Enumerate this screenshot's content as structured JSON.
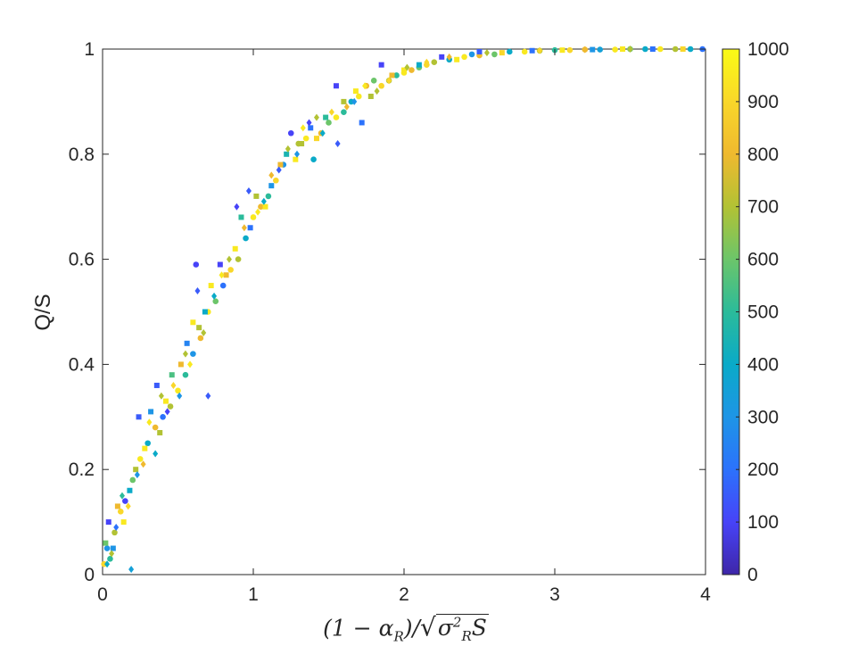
{
  "chart_data": {
    "type": "scatter",
    "ylabel": "Q/S",
    "xlabel_parts": {
      "open": "(1 − ",
      "alpha": "α",
      "alpha_sub": "R",
      "close": ")/",
      "sqrt": "√",
      "sigma": "σ",
      "sigma_sup": "2",
      "sigma_sub": "R",
      "s": "S"
    },
    "xlim": [
      0,
      4
    ],
    "ylim": [
      0,
      1
    ],
    "x_ticks": [
      "0",
      "1",
      "2",
      "3",
      "4"
    ],
    "y_ticks": [
      "0",
      "0.2",
      "0.4",
      "0.6",
      "0.8",
      "1"
    ],
    "grid": false,
    "colorbar": {
      "range": [
        0,
        1000
      ],
      "ticks": [
        "0",
        "100",
        "200",
        "300",
        "400",
        "500",
        "600",
        "700",
        "800",
        "900",
        "1000"
      ],
      "colormap": "parula",
      "stops": [
        "#3e26a8",
        "#4743f8",
        "#2c72fc",
        "#1e95e6",
        "#0aaac8",
        "#2bbb9a",
        "#6cc56a",
        "#b2c234",
        "#efb92f",
        "#f9d72a",
        "#f9fb15"
      ]
    },
    "markers": [
      "circle",
      "square",
      "diamond"
    ],
    "series": [
      {
        "marker": "circle",
        "points": [
          [
            0.01,
            0.02,
            900
          ],
          [
            0.03,
            0.05,
            300
          ],
          [
            0.05,
            0.03,
            500
          ],
          [
            0.08,
            0.08,
            700
          ],
          [
            0.12,
            0.12,
            900
          ],
          [
            0.15,
            0.14,
            100
          ],
          [
            0.2,
            0.18,
            600
          ],
          [
            0.25,
            0.22,
            950
          ],
          [
            0.3,
            0.25,
            400
          ],
          [
            0.35,
            0.28,
            800
          ],
          [
            0.4,
            0.3,
            200
          ],
          [
            0.45,
            0.32,
            700
          ],
          [
            0.5,
            0.35,
            950
          ],
          [
            0.55,
            0.38,
            500
          ],
          [
            0.6,
            0.42,
            300
          ],
          [
            0.62,
            0.59,
            100
          ],
          [
            0.65,
            0.45,
            800
          ],
          [
            0.7,
            0.5,
            950
          ],
          [
            0.75,
            0.52,
            600
          ],
          [
            0.8,
            0.55,
            200
          ],
          [
            0.85,
            0.58,
            900
          ],
          [
            0.9,
            0.6,
            700
          ],
          [
            0.95,
            0.64,
            400
          ],
          [
            1.0,
            0.68,
            950
          ],
          [
            1.05,
            0.7,
            800
          ],
          [
            1.1,
            0.72,
            500
          ],
          [
            1.15,
            0.75,
            900
          ],
          [
            1.2,
            0.78,
            300
          ],
          [
            1.25,
            0.84,
            100
          ],
          [
            1.3,
            0.82,
            700
          ],
          [
            1.35,
            0.83,
            950
          ],
          [
            1.4,
            0.79,
            400
          ],
          [
            1.45,
            0.84,
            800
          ],
          [
            1.5,
            0.86,
            600
          ],
          [
            1.55,
            0.87,
            950
          ],
          [
            1.6,
            0.88,
            500
          ],
          [
            1.65,
            0.9,
            400
          ],
          [
            1.7,
            0.91,
            950
          ],
          [
            1.75,
            0.93,
            800
          ],
          [
            1.8,
            0.94,
            600
          ],
          [
            1.85,
            0.93,
            900
          ],
          [
            1.9,
            0.94,
            700
          ],
          [
            1.95,
            0.95,
            500
          ],
          [
            2.0,
            0.955,
            950
          ],
          [
            2.05,
            0.96,
            800
          ],
          [
            2.1,
            0.965,
            600
          ],
          [
            2.15,
            0.97,
            900
          ],
          [
            2.2,
            0.975,
            700
          ],
          [
            2.3,
            0.98,
            400
          ],
          [
            2.4,
            0.985,
            950
          ],
          [
            2.45,
            0.99,
            300
          ],
          [
            2.5,
            0.988,
            800
          ],
          [
            2.6,
            0.99,
            600
          ],
          [
            2.7,
            0.995,
            400
          ],
          [
            2.8,
            0.995,
            950
          ],
          [
            2.9,
            0.997,
            700
          ],
          [
            3.0,
            0.998,
            500
          ],
          [
            3.1,
            0.998,
            900
          ],
          [
            3.2,
            0.999,
            800
          ],
          [
            3.3,
            0.999,
            350
          ],
          [
            3.4,
            0.999,
            950
          ],
          [
            3.5,
            1.0,
            600
          ],
          [
            3.6,
            1.0,
            400
          ],
          [
            3.7,
            1.0,
            950
          ],
          [
            3.8,
            1.0,
            700
          ],
          [
            3.9,
            1.0,
            400
          ],
          [
            3.98,
            1.0,
            200
          ]
        ]
      },
      {
        "marker": "square",
        "points": [
          [
            0.02,
            0.06,
            600
          ],
          [
            0.04,
            0.1,
            100
          ],
          [
            0.07,
            0.05,
            300
          ],
          [
            0.1,
            0.13,
            800
          ],
          [
            0.14,
            0.1,
            950
          ],
          [
            0.18,
            0.16,
            400
          ],
          [
            0.22,
            0.2,
            700
          ],
          [
            0.24,
            0.3,
            150
          ],
          [
            0.28,
            0.24,
            950
          ],
          [
            0.32,
            0.31,
            300
          ],
          [
            0.36,
            0.36,
            150
          ],
          [
            0.38,
            0.27,
            700
          ],
          [
            0.42,
            0.33,
            950
          ],
          [
            0.46,
            0.38,
            550
          ],
          [
            0.52,
            0.4,
            800
          ],
          [
            0.56,
            0.44,
            250
          ],
          [
            0.6,
            0.48,
            950
          ],
          [
            0.64,
            0.47,
            700
          ],
          [
            0.68,
            0.5,
            400
          ],
          [
            0.72,
            0.55,
            950
          ],
          [
            0.78,
            0.59,
            100
          ],
          [
            0.82,
            0.57,
            800
          ],
          [
            0.88,
            0.62,
            950
          ],
          [
            0.92,
            0.68,
            500
          ],
          [
            0.98,
            0.66,
            200
          ],
          [
            1.02,
            0.72,
            700
          ],
          [
            1.08,
            0.7,
            950
          ],
          [
            1.12,
            0.74,
            300
          ],
          [
            1.18,
            0.78,
            800
          ],
          [
            1.22,
            0.8,
            450
          ],
          [
            1.28,
            0.79,
            950
          ],
          [
            1.32,
            0.82,
            700
          ],
          [
            1.38,
            0.85,
            200
          ],
          [
            1.42,
            0.83,
            900
          ],
          [
            1.48,
            0.87,
            500
          ],
          [
            1.55,
            0.93,
            100
          ],
          [
            1.6,
            0.9,
            700
          ],
          [
            1.68,
            0.92,
            950
          ],
          [
            1.72,
            0.86,
            200
          ],
          [
            1.78,
            0.91,
            700
          ],
          [
            1.85,
            0.97,
            100
          ],
          [
            1.92,
            0.95,
            800
          ],
          [
            2.0,
            0.96,
            950
          ],
          [
            2.1,
            0.97,
            400
          ],
          [
            2.25,
            0.985,
            100
          ],
          [
            2.35,
            0.98,
            950
          ],
          [
            2.5,
            0.995,
            150
          ],
          [
            2.65,
            0.993,
            900
          ],
          [
            2.85,
            0.997,
            200
          ],
          [
            3.05,
            0.998,
            950
          ],
          [
            3.25,
            0.999,
            300
          ],
          [
            3.45,
            1.0,
            950
          ],
          [
            3.65,
            1.0,
            200
          ],
          [
            3.85,
            1.0,
            900
          ]
        ]
      },
      {
        "marker": "diamond",
        "points": [
          [
            0.03,
            0.02,
            400
          ],
          [
            0.06,
            0.04,
            700
          ],
          [
            0.09,
            0.09,
            200
          ],
          [
            0.13,
            0.15,
            500
          ],
          [
            0.17,
            0.13,
            900
          ],
          [
            0.19,
            0.01,
            350
          ],
          [
            0.23,
            0.19,
            300
          ],
          [
            0.27,
            0.21,
            800
          ],
          [
            0.31,
            0.29,
            950
          ],
          [
            0.35,
            0.23,
            400
          ],
          [
            0.39,
            0.34,
            700
          ],
          [
            0.43,
            0.31,
            100
          ],
          [
            0.47,
            0.36,
            900
          ],
          [
            0.51,
            0.34,
            300
          ],
          [
            0.55,
            0.42,
            700
          ],
          [
            0.58,
            0.4,
            950
          ],
          [
            0.63,
            0.54,
            150
          ],
          [
            0.67,
            0.46,
            700
          ],
          [
            0.7,
            0.34,
            150
          ],
          [
            0.74,
            0.53,
            400
          ],
          [
            0.79,
            0.57,
            950
          ],
          [
            0.84,
            0.6,
            700
          ],
          [
            0.89,
            0.7,
            100
          ],
          [
            0.94,
            0.66,
            800
          ],
          [
            0.97,
            0.73,
            150
          ],
          [
            1.03,
            0.69,
            950
          ],
          [
            1.07,
            0.71,
            400
          ],
          [
            1.12,
            0.76,
            800
          ],
          [
            1.17,
            0.77,
            150
          ],
          [
            1.23,
            0.81,
            700
          ],
          [
            1.29,
            0.8,
            300
          ],
          [
            1.33,
            0.85,
            950
          ],
          [
            1.37,
            0.86,
            100
          ],
          [
            1.42,
            0.87,
            700
          ],
          [
            1.46,
            0.84,
            400
          ],
          [
            1.52,
            0.88,
            900
          ],
          [
            1.56,
            0.82,
            150
          ],
          [
            1.62,
            0.89,
            800
          ],
          [
            1.67,
            0.9,
            300
          ],
          [
            1.74,
            0.93,
            950
          ],
          [
            1.82,
            0.92,
            700
          ],
          [
            1.9,
            0.94,
            900
          ],
          [
            2.02,
            0.965,
            700
          ],
          [
            2.15,
            0.975,
            900
          ],
          [
            2.3,
            0.985,
            800
          ],
          [
            2.55,
            0.993,
            700
          ],
          [
            2.9,
            0.997,
            900
          ],
          [
            3.2,
            0.999,
            800
          ],
          [
            3.5,
            1.0,
            700
          ]
        ]
      }
    ]
  }
}
